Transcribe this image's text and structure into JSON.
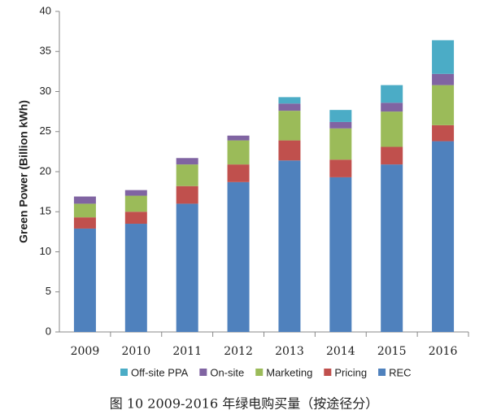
{
  "chart_data": {
    "type": "stacked_bar",
    "y_label": "Green Power (Billion kWh)",
    "caption": "图 10 2009-2016 年绿电购买量（按途径分）",
    "categories": [
      "2009",
      "2010",
      "2011",
      "2012",
      "2013",
      "2014",
      "2015",
      "2016"
    ],
    "series": [
      {
        "name": "REC",
        "color": "#4f81bd",
        "values": [
          12.9,
          13.5,
          16.0,
          18.7,
          21.4,
          19.3,
          20.9,
          23.8
        ]
      },
      {
        "name": "Pricing",
        "color": "#c0504d",
        "values": [
          1.4,
          1.5,
          2.2,
          2.2,
          2.5,
          2.2,
          2.2,
          2.0
        ]
      },
      {
        "name": "Marketing",
        "color": "#9bbb59",
        "values": [
          1.7,
          2.0,
          2.7,
          3.0,
          3.7,
          3.9,
          4.4,
          5.0
        ]
      },
      {
        "name": "On-site",
        "color": "#8064a2",
        "values": [
          0.9,
          0.7,
          0.8,
          0.6,
          0.9,
          0.8,
          1.1,
          1.4
        ]
      },
      {
        "name": "Off-site PPA",
        "color": "#4bacc6",
        "values": [
          0,
          0,
          0,
          0,
          0.8,
          1.5,
          2.2,
          4.2
        ]
      }
    ],
    "ylim": [
      0,
      40
    ],
    "yticks": [
      0,
      5,
      10,
      15,
      20,
      25,
      30,
      35,
      40
    ],
    "grid": false
  }
}
